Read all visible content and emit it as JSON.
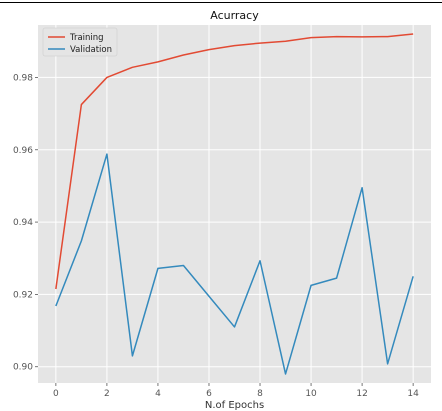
{
  "chart_data": {
    "type": "line",
    "title": "Acurracy",
    "xlabel": "N.of Epochs",
    "ylabel": "",
    "x": [
      0,
      1,
      2,
      3,
      4,
      5,
      6,
      7,
      8,
      9,
      10,
      11,
      12,
      13,
      14
    ],
    "xticks": [
      "0",
      "2",
      "4",
      "6",
      "8",
      "10",
      "12",
      "14"
    ],
    "yticks": [
      "0.90",
      "0.92",
      "0.94",
      "0.96",
      "0.98"
    ],
    "xlim": [
      -0.7,
      14.7
    ],
    "ylim": [
      0.8955,
      0.9945
    ],
    "grid": true,
    "legend_position": "top-left",
    "series": [
      {
        "name": "Training",
        "color": "#e24a33",
        "values": [
          0.9215,
          0.9725,
          0.98,
          0.9828,
          0.9843,
          0.9862,
          0.9877,
          0.9888,
          0.9895,
          0.99,
          0.991,
          0.9913,
          0.9912,
          0.9913,
          0.992
        ]
      },
      {
        "name": "Validation",
        "color": "#348abd",
        "values": [
          0.9168,
          0.9348,
          0.9588,
          0.903,
          0.9272,
          0.928,
          0.9195,
          0.911,
          0.9293,
          0.898,
          0.9225,
          0.9245,
          0.9495,
          0.9008,
          0.925
        ]
      }
    ]
  }
}
